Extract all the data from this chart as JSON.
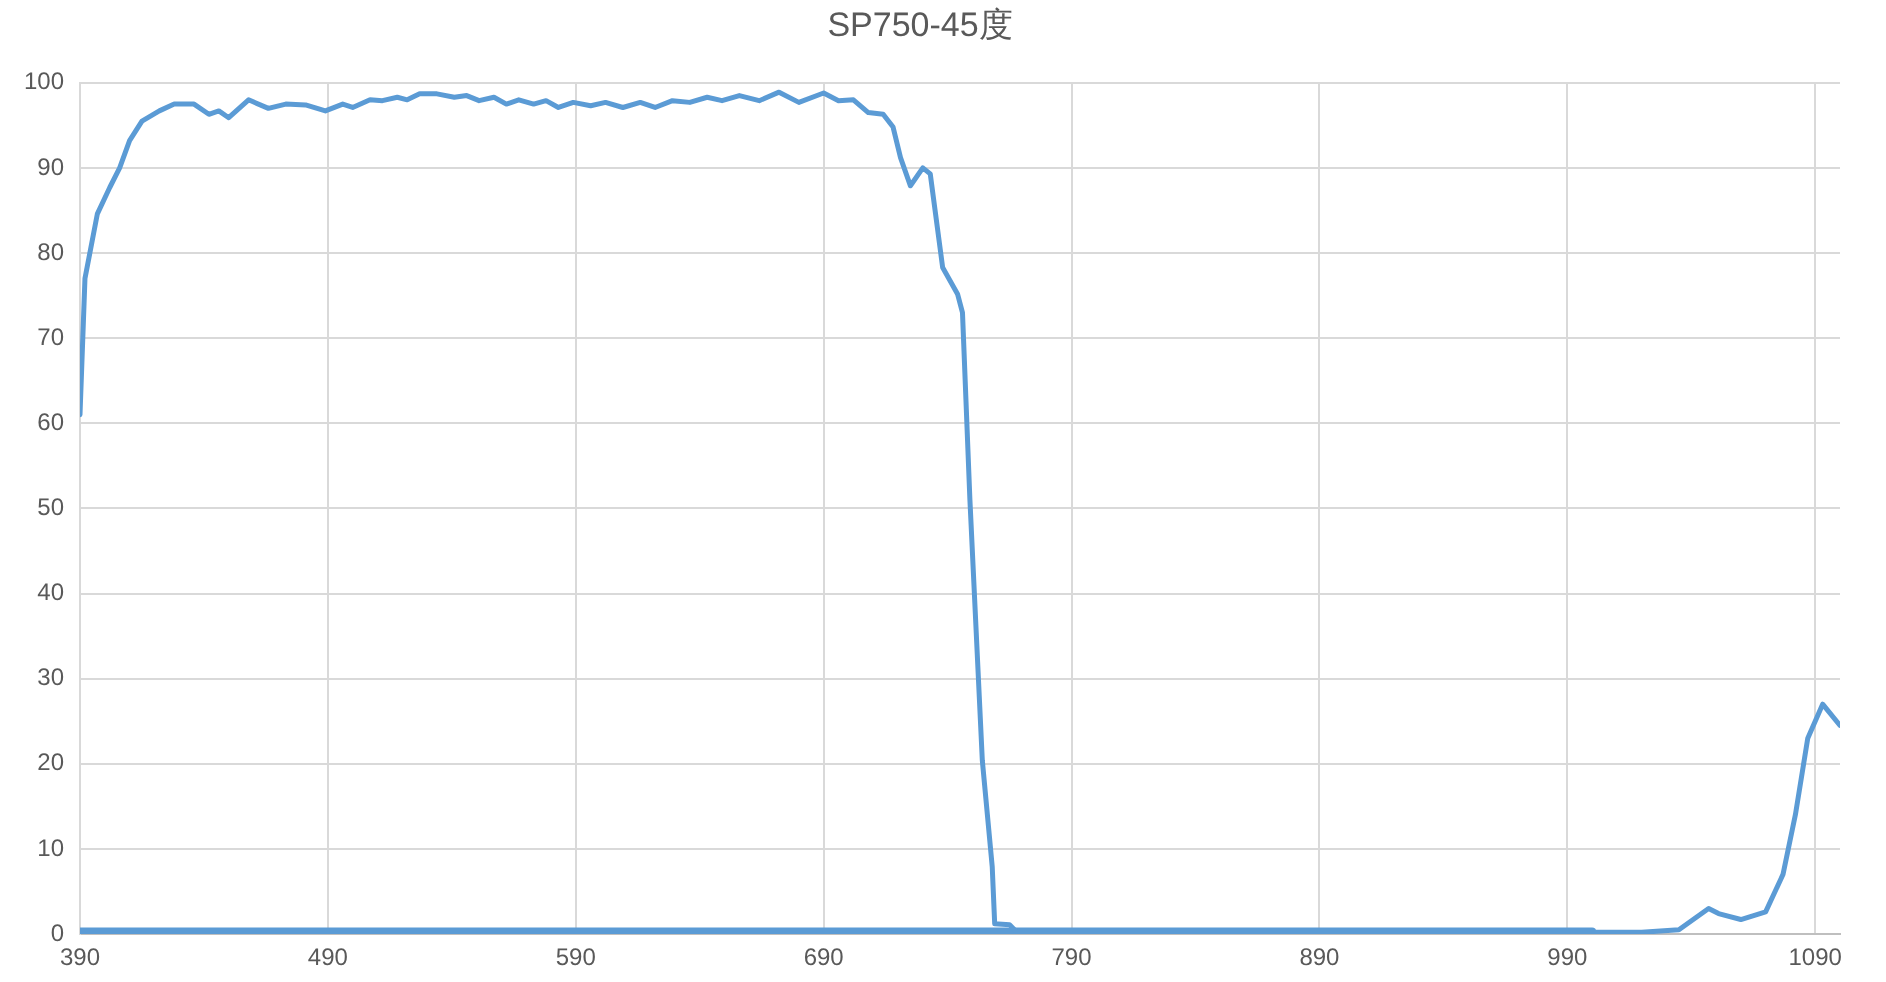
{
  "chart_data": {
    "type": "line",
    "title": "SP750-45度",
    "series": [
      {
        "color": "#5b9bd5",
        "x": [
          390,
          392,
          397,
          402,
          406,
          410,
          415,
          422,
          428,
          436,
          442,
          446,
          450,
          458,
          466,
          473,
          481,
          489,
          496,
          500,
          507,
          512,
          518,
          522,
          527,
          534,
          541,
          546,
          551,
          557,
          562,
          567,
          573,
          578,
          583,
          589,
          596,
          602,
          609,
          616,
          622,
          629,
          636,
          643,
          649,
          656,
          664,
          672,
          680,
          690,
          696,
          702,
          708,
          714,
          718,
          721,
          725,
          730,
          733,
          738,
          744,
          746,
          749,
          754,
          758,
          759,
          765,
          768,
          800,
          900,
          1000,
          1020,
          1035,
          1047,
          1051,
          1060,
          1070,
          1077,
          1082,
          1087,
          1093,
          1100
        ],
        "values": [
          61,
          77,
          84.6,
          87.7,
          90,
          93.2,
          95.5,
          96.7,
          97.5,
          97.5,
          96.3,
          96.7,
          95.9,
          98,
          97,
          97.5,
          97.4,
          96.7,
          97.5,
          97.1,
          98,
          97.9,
          98.3,
          98,
          98.7,
          98.7,
          98.3,
          98.5,
          97.9,
          98.3,
          97.5,
          98,
          97.5,
          97.9,
          97.1,
          97.7,
          97.3,
          97.7,
          97.1,
          97.7,
          97.1,
          97.9,
          97.7,
          98.3,
          97.9,
          98.5,
          97.9,
          98.9,
          97.7,
          98.8,
          97.9,
          98,
          96.5,
          96.3,
          94.8,
          91.2,
          87.9,
          90,
          89.3,
          78.3,
          75.2,
          73,
          51,
          20.4,
          7.9,
          1.2,
          1.1,
          0.2,
          0.2,
          0.2,
          0.2,
          0.2,
          0.5,
          3,
          2.4,
          1.7,
          2.6,
          7,
          14,
          23,
          27,
          24.5
        ]
      },
      {
        "color": "#5b9bd5",
        "x": [
          390,
          1000
        ],
        "values": [
          0.3,
          0.3
        ]
      }
    ],
    "xlim": [
      390,
      1100
    ],
    "xticks": [
      390,
      490,
      590,
      690,
      790,
      890,
      990,
      1090
    ],
    "ylim": [
      0,
      100
    ],
    "yticks": [
      0,
      10,
      20,
      30,
      40,
      50,
      60,
      70,
      80,
      90,
      100
    ],
    "grid": true,
    "marker": "none",
    "line_style": "solid"
  }
}
